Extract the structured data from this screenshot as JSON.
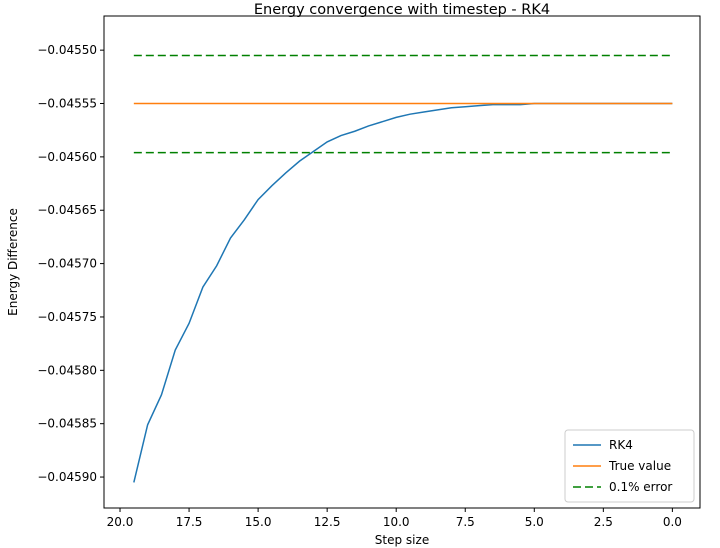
{
  "chart_data": {
    "type": "line",
    "title": "Energy convergence with timestep - RK4",
    "xlabel": "Step size",
    "ylabel": "Energy Difference",
    "xlim": [
      20.58,
      -1.0
    ],
    "ylim": [
      -0.045929,
      -0.045468
    ],
    "x_inverted": true,
    "grid": false,
    "legend_position": "lower-right",
    "xticks": [
      {
        "value": 20.0,
        "label": "20.0"
      },
      {
        "value": 17.5,
        "label": "17.5"
      },
      {
        "value": 15.0,
        "label": "15.0"
      },
      {
        "value": 12.5,
        "label": "12.5"
      },
      {
        "value": 10.0,
        "label": "10.0"
      },
      {
        "value": 7.5,
        "label": "7.5"
      },
      {
        "value": 5.0,
        "label": "5.0"
      },
      {
        "value": 2.5,
        "label": "2.5"
      },
      {
        "value": 0.0,
        "label": "0.0"
      }
    ],
    "yticks": [
      {
        "value": -0.0455,
        "label": "−0.04550"
      },
      {
        "value": -0.04555,
        "label": "−0.04555"
      },
      {
        "value": -0.0456,
        "label": "−0.04560"
      },
      {
        "value": -0.04565,
        "label": "−0.04565"
      },
      {
        "value": -0.0457,
        "label": "−0.04570"
      },
      {
        "value": -0.04575,
        "label": "−0.04575"
      },
      {
        "value": -0.0458,
        "label": "−0.04580"
      },
      {
        "value": -0.04585,
        "label": "−0.04585"
      },
      {
        "value": -0.0459,
        "label": "−0.04590"
      }
    ],
    "series": [
      {
        "name": "RK4",
        "color": "#1f77b4",
        "style": "solid",
        "x": [
          19.5,
          19.0,
          18.5,
          18.0,
          17.5,
          17.0,
          16.5,
          16.0,
          15.5,
          15.0,
          14.5,
          14.0,
          13.5,
          13.0,
          12.5,
          12.0,
          11.5,
          11.0,
          10.5,
          10.0,
          9.5,
          9.0,
          8.5,
          8.0,
          7.5,
          7.0,
          6.5,
          6.0,
          5.5,
          5.0,
          4.5,
          4.0,
          3.5,
          3.0,
          2.5,
          2.0,
          1.5,
          1.0,
          0.5,
          0.0
        ],
        "y": [
          -0.045905,
          -0.045851,
          -0.045823,
          -0.045781,
          -0.045756,
          -0.045722,
          -0.045702,
          -0.045676,
          -0.045659,
          -0.04564,
          -0.045627,
          -0.045615,
          -0.045604,
          -0.045595,
          -0.045586,
          -0.04558,
          -0.045576,
          -0.045571,
          -0.045567,
          -0.045563,
          -0.04556,
          -0.045558,
          -0.045556,
          -0.045554,
          -0.045553,
          -0.045552,
          -0.045551,
          -0.045551,
          -0.045551,
          -0.04555,
          -0.04555,
          -0.04555,
          -0.04555,
          -0.04555,
          -0.04555,
          -0.04555,
          -0.04555,
          -0.04555,
          -0.04555,
          -0.04555
        ]
      },
      {
        "name": "True value",
        "color": "#ff7f0e",
        "style": "solid",
        "x": [
          19.5,
          0.0
        ],
        "y": [
          -0.04555,
          -0.04555
        ]
      },
      {
        "name": "0.1% error",
        "color": "#008000",
        "style": "dashed",
        "x": [
          19.5,
          0.0
        ],
        "y": [
          -0.045505,
          -0.045505
        ]
      },
      {
        "name": "0.1% error",
        "color": "#008000",
        "style": "dashed",
        "x": [
          19.5,
          0.0
        ],
        "y": [
          -0.045596,
          -0.045596
        ]
      }
    ],
    "legend": [
      {
        "label": "RK4",
        "color": "#1f77b4",
        "style": "solid"
      },
      {
        "label": "True value",
        "color": "#ff7f0e",
        "style": "solid"
      },
      {
        "label": "0.1% error",
        "color": "#008000",
        "style": "dashed"
      }
    ]
  }
}
